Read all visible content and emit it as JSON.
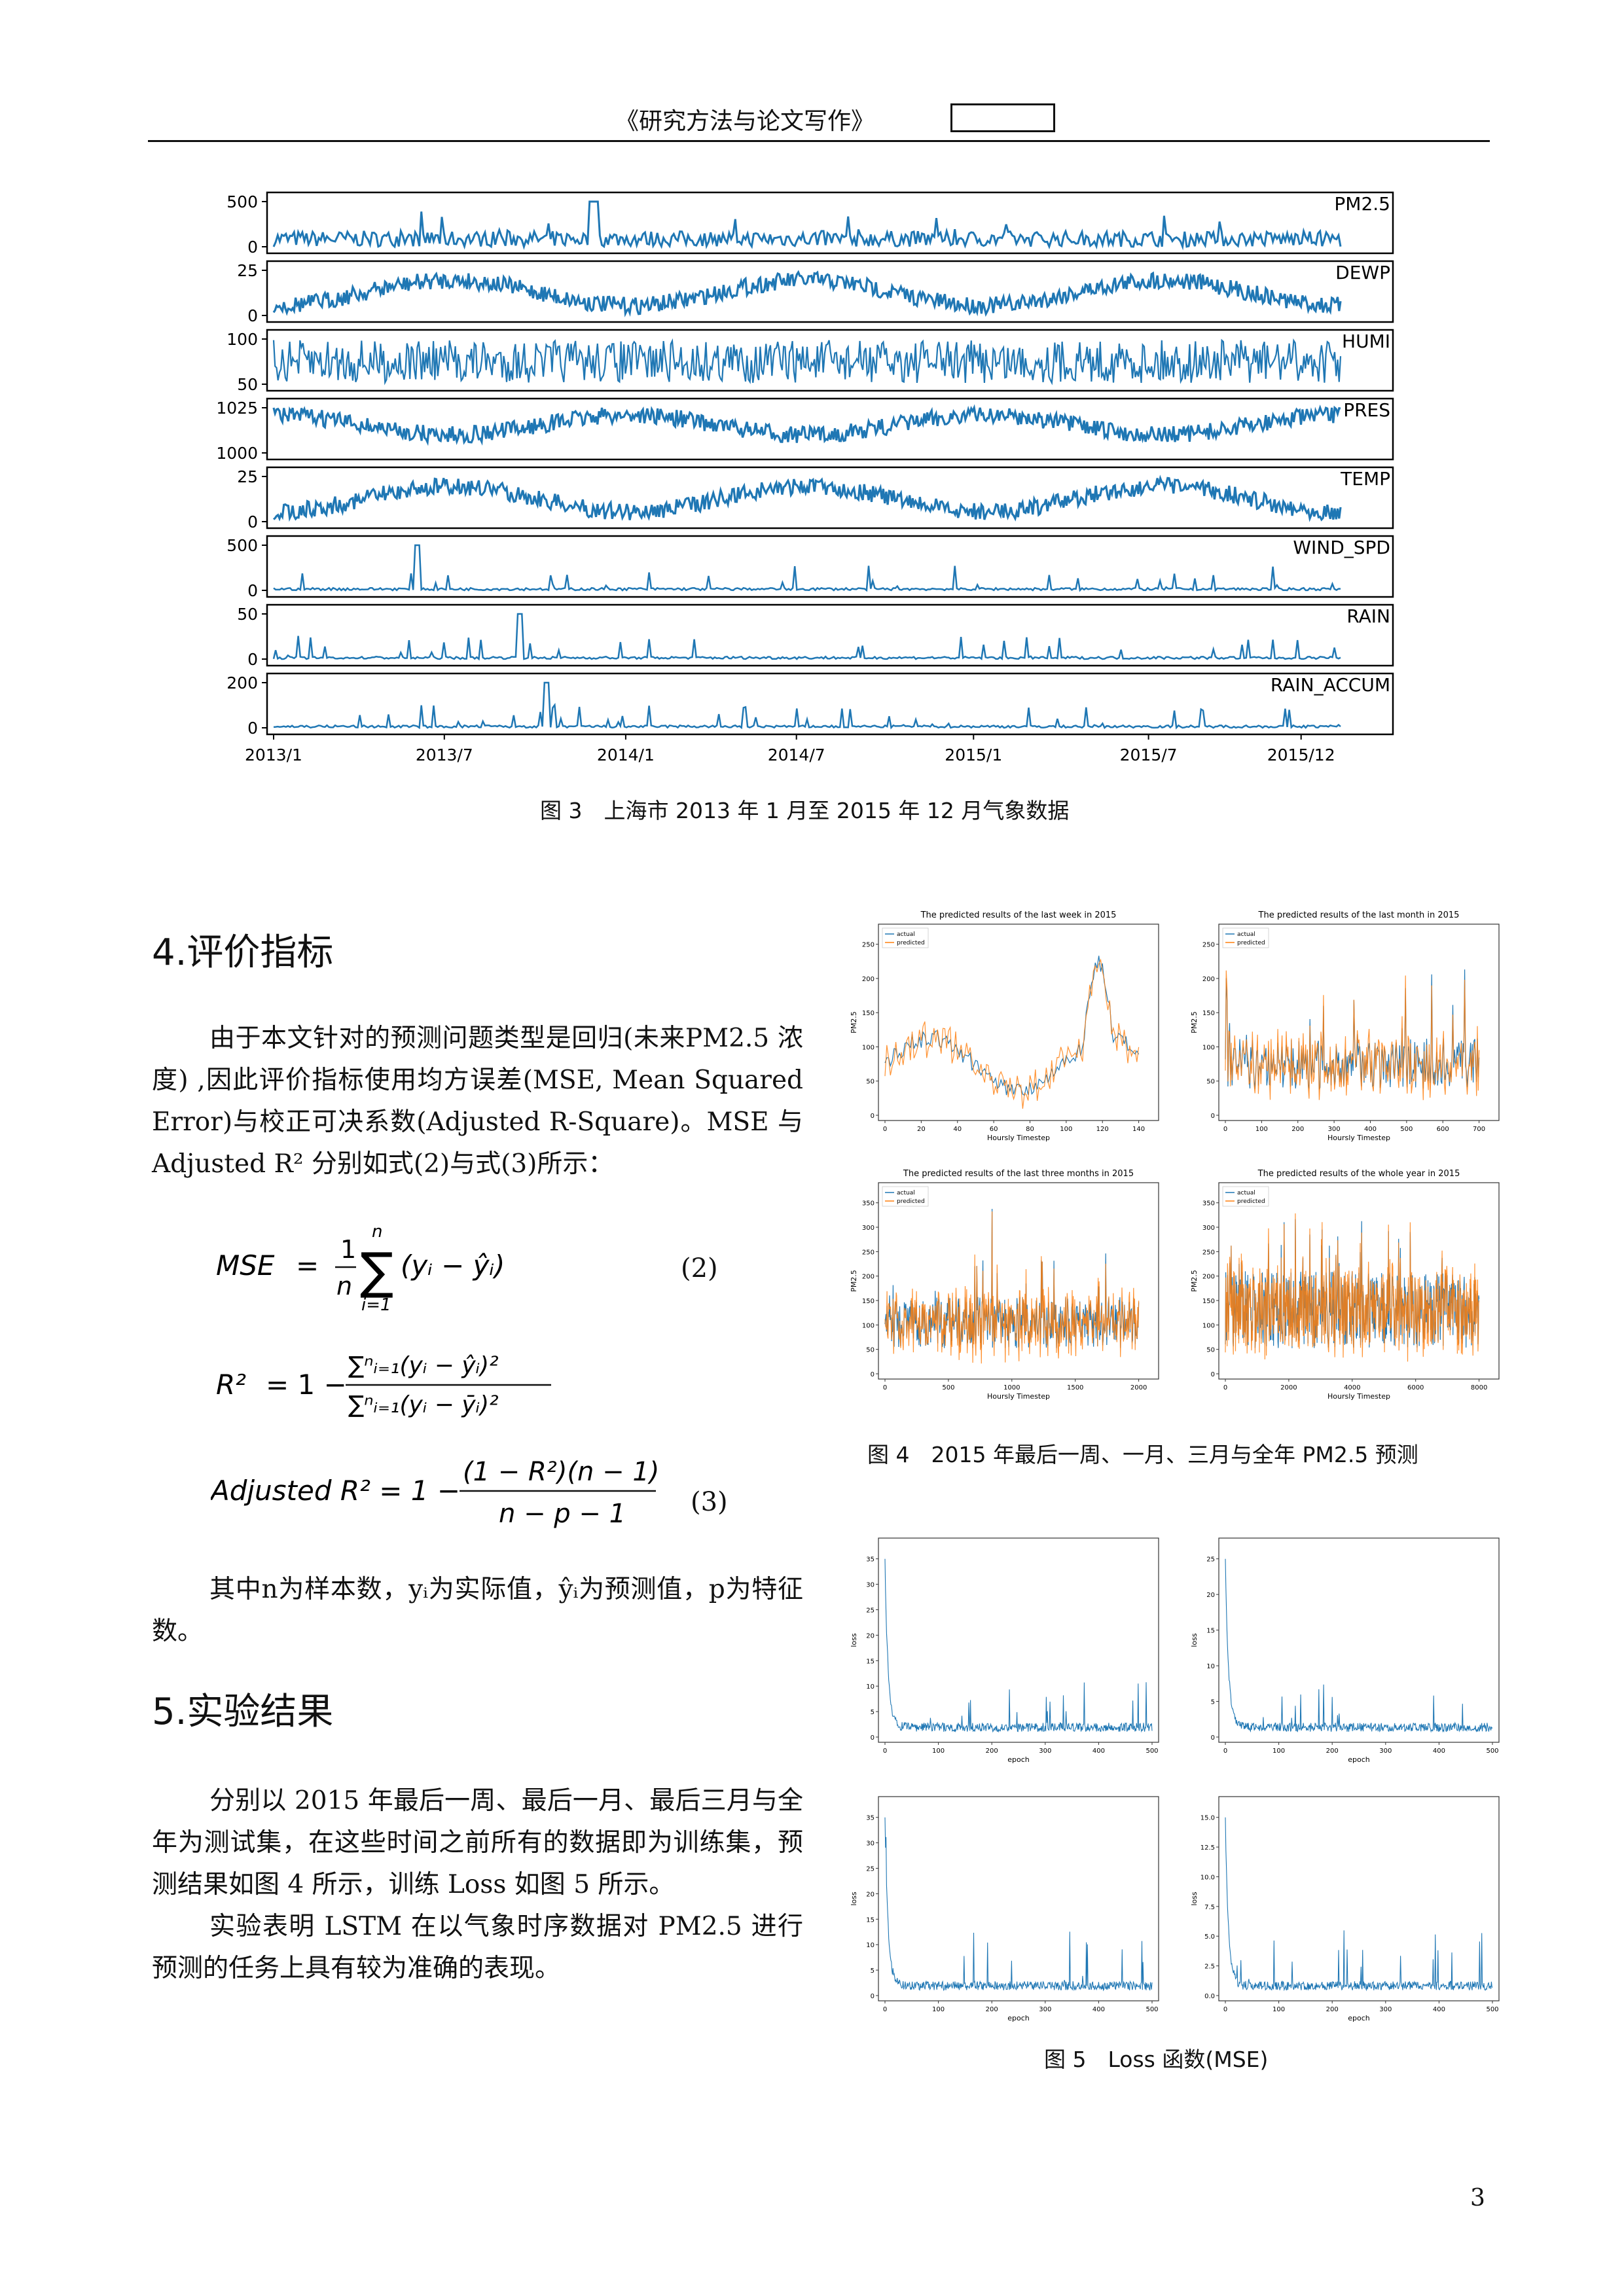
{
  "header": {
    "title": "《研究方法与论文写作》"
  },
  "figure3": {
    "caption": "图 3　上海市 2013 年 1 月至 2015 年 12 月气象数据",
    "line_color": "#1f77b4",
    "xticks": [
      "2013/1",
      "2013/7",
      "2014/1",
      "2014/7",
      "2015/1",
      "2015/7",
      "2015/12"
    ],
    "chart_data": {
      "type": "line",
      "x_range": [
        "2013/1",
        "2015/12"
      ],
      "panels": [
        {
          "name": "PM2.5",
          "yticks": [
            "500",
            "0"
          ]
        },
        {
          "name": "DEWP",
          "yticks": [
            "25",
            "0"
          ]
        },
        {
          "name": "HUMI",
          "yticks": [
            "100",
            "50"
          ]
        },
        {
          "name": "PRES",
          "yticks": [
            "1025",
            "1000"
          ]
        },
        {
          "name": "TEMP",
          "yticks": [
            "25",
            "0"
          ]
        },
        {
          "name": "WIND_SPD",
          "yticks": [
            "500",
            "0"
          ]
        },
        {
          "name": "RAIN",
          "yticks": [
            "50",
            "0"
          ]
        },
        {
          "name": "RAIN_ACCUM",
          "yticks": [
            "200",
            "0"
          ]
        }
      ]
    }
  },
  "section4": {
    "heading": "4.评价指标",
    "para1": "由于本文针对的预测问题类型是回归(未来PM2.5 浓度) ,因此评价指标使用均方误差(MSE, Mean Squared Error)与校正可决系数(Adjusted R-Square)。MSE 与 Adjusted R² 分别如式(2)与式(3)所示：",
    "eq2_lhs": "MSE",
    "eq2_num": "(2)",
    "eq3_lhs": "Adjusted R² = 1 −",
    "eq3_numer": "(1 − R²)(n − 1)",
    "eq3_denom": "n − p − 1",
    "eq3_num": "(3)",
    "para2": "其中n为样本数，yᵢ为实际值，ŷᵢ为预测值，p为特征数。"
  },
  "section5": {
    "heading": "5.实验结果",
    "para1": "分别以 2015 年最后一周、最后一月、最后三月与全年为测试集，在这些时间之前所有的数据即为训练集，预测结果如图 4 所示，训练 Loss 如图 5 所示。",
    "para2": "实验表明 LSTM 在以气象时序数据对 PM2.5 进行预测的任务上具有较为准确的表现。"
  },
  "figure4": {
    "caption": "图 4　2015 年最后一周、一月、三月与全年 PM2.5 预测",
    "actual_color": "#1f77b4",
    "predicted_color": "#ff7f0e",
    "chart_data": [
      {
        "type": "line",
        "title": "The predicted results of the last week in 2015",
        "xlabel": "Hoursly Timestep",
        "ylabel": "PM2.5",
        "series": [
          {
            "name": "actual"
          },
          {
            "name": "predicted"
          }
        ],
        "xticks": [
          "0",
          "20",
          "40",
          "60",
          "80",
          "100",
          "120",
          "140"
        ],
        "yticks": [
          "0",
          "50",
          "100",
          "150",
          "200",
          "250"
        ]
      },
      {
        "type": "line",
        "title": "The predicted results of the last month in 2015",
        "xlabel": "Hoursly Timestep",
        "ylabel": "PM2.5",
        "series": [
          {
            "name": "actual"
          },
          {
            "name": "predicted"
          }
        ],
        "xticks": [
          "0",
          "100",
          "200",
          "300",
          "400",
          "500",
          "600",
          "700"
        ],
        "yticks": [
          "0",
          "50",
          "100",
          "150",
          "200",
          "250"
        ]
      },
      {
        "type": "line",
        "title": "The predicted results of the last three months in 2015",
        "xlabel": "Hoursly Timestep",
        "ylabel": "PM2.5",
        "series": [
          {
            "name": "actual"
          },
          {
            "name": "predicted"
          }
        ],
        "xticks": [
          "0",
          "500",
          "1000",
          "1500",
          "2000"
        ],
        "yticks": [
          "0",
          "50",
          "100",
          "150",
          "200",
          "250",
          "300",
          "350"
        ]
      },
      {
        "type": "line",
        "title": "The predicted results of the whole year in 2015",
        "xlabel": "Hoursly Timestep",
        "ylabel": "PM2.5",
        "series": [
          {
            "name": "actual"
          },
          {
            "name": "predicted"
          }
        ],
        "xticks": [
          "0",
          "2000",
          "4000",
          "6000",
          "8000"
        ],
        "yticks": [
          "0",
          "50",
          "100",
          "150",
          "200",
          "250",
          "300",
          "350"
        ]
      }
    ]
  },
  "figure5": {
    "caption": "图 5　Loss 函数(MSE)",
    "line_color": "#1f77b4",
    "chart_data": [
      {
        "type": "line",
        "xlabel": "epoch",
        "ylabel": "loss",
        "xticks": [
          "0",
          "100",
          "200",
          "300",
          "400",
          "500"
        ],
        "yticks": [
          "0",
          "5",
          "10",
          "15",
          "20",
          "25",
          "30",
          "35"
        ]
      },
      {
        "type": "line",
        "xlabel": "epoch",
        "ylabel": "loss",
        "xticks": [
          "0",
          "100",
          "200",
          "300",
          "400",
          "500"
        ],
        "yticks": [
          "0",
          "5",
          "10",
          "15",
          "20",
          "25"
        ]
      },
      {
        "type": "line",
        "xlabel": "epoch",
        "ylabel": "loss",
        "xticks": [
          "0",
          "100",
          "200",
          "300",
          "400",
          "500"
        ],
        "yticks": [
          "0",
          "5",
          "10",
          "15",
          "20",
          "25",
          "30",
          "35"
        ]
      },
      {
        "type": "line",
        "xlabel": "epoch",
        "ylabel": "loss",
        "xticks": [
          "0",
          "100",
          "200",
          "300",
          "400",
          "500"
        ],
        "yticks": [
          "0.0",
          "2.5",
          "5.0",
          "7.5",
          "10.0",
          "12.5",
          "15.0"
        ]
      }
    ]
  },
  "page_number": "3"
}
